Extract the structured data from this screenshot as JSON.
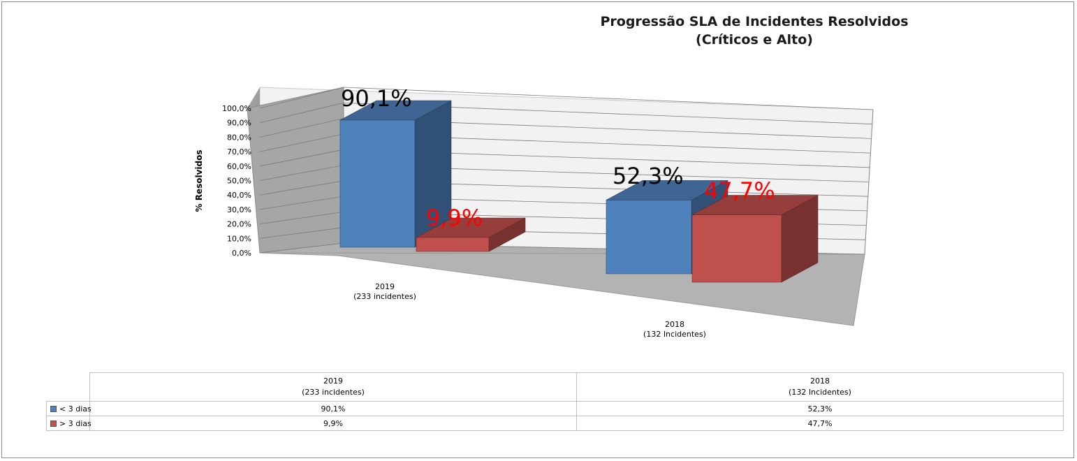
{
  "chart_data": {
    "type": "bar",
    "title": [
      "Progressão SLA de Incidentes Resolvidos",
      "(Críticos e Alto)"
    ],
    "ylabel": "% Resolvidos",
    "ylim": [
      0,
      100
    ],
    "yticks": [
      "0,0%",
      "10,0%",
      "20,0%",
      "30,0%",
      "40,0%",
      "50,0%",
      "60,0%",
      "70,0%",
      "80,0%",
      "90,0%",
      "100,0%"
    ],
    "categories": [
      [
        "2019",
        "(233 incidentes)"
      ],
      [
        "2018",
        "(132 Incidentes)"
      ]
    ],
    "series": [
      {
        "name": "< 3 dias",
        "color": "#4f81bd",
        "values": [
          90.1,
          52.3
        ],
        "labels": [
          "90,1%",
          "52,3%"
        ],
        "label_color": "#000000"
      },
      {
        "name": "> 3 dias",
        "color": "#c0504d",
        "values": [
          9.9,
          47.7
        ],
        "labels": [
          "9,9%",
          "47,7%"
        ],
        "label_color": "#ff0000"
      }
    ],
    "grid": true,
    "legend": "data-table"
  }
}
